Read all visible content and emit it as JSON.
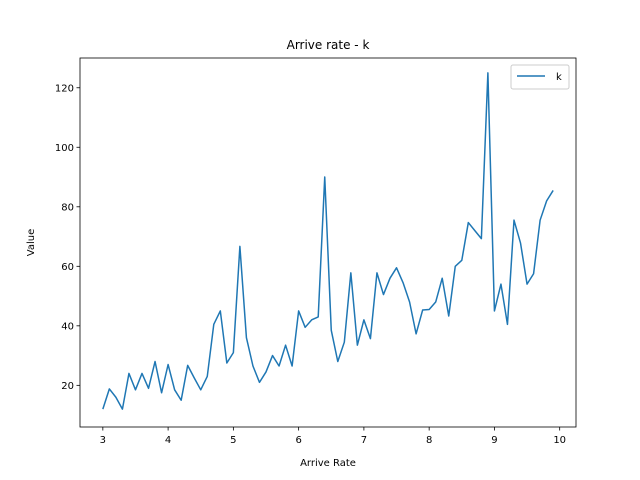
{
  "chart_data": {
    "type": "line",
    "title": "Arrive rate - k",
    "xlabel": "Arrive Rate",
    "ylabel": "Value",
    "xlim": [
      2.65,
      10.25
    ],
    "ylim": [
      6.0,
      130.0
    ],
    "xticks": [
      3,
      4,
      5,
      6,
      7,
      8,
      9,
      10
    ],
    "yticks": [
      20,
      40,
      60,
      80,
      100,
      120
    ],
    "legend_position": "top-right",
    "grid": false,
    "series": [
      {
        "name": "k",
        "color": "#1f77b4",
        "x": [
          3.0,
          3.1,
          3.2,
          3.3,
          3.4,
          3.5,
          3.6,
          3.7,
          3.8,
          3.9,
          4.0,
          4.1,
          4.2,
          4.3,
          4.4,
          4.5,
          4.6,
          4.7,
          4.8,
          4.9,
          5.0,
          5.1,
          5.2,
          5.3,
          5.4,
          5.5,
          5.6,
          5.7,
          5.8,
          5.9,
          6.0,
          6.1,
          6.2,
          6.3,
          6.4,
          6.5,
          6.6,
          6.7,
          6.8,
          6.9,
          7.0,
          7.1,
          7.2,
          7.3,
          7.4,
          7.5,
          7.6,
          7.7,
          7.8,
          7.9,
          8.0,
          8.1,
          8.2,
          8.3,
          8.4,
          8.5,
          8.6,
          8.7,
          8.8,
          8.9,
          9.0,
          9.1,
          9.2,
          9.3,
          9.4,
          9.5,
          9.6,
          9.7,
          9.8,
          9.9
        ],
        "values": [
          12.0,
          18.8,
          16.0,
          12.0,
          24.0,
          18.5,
          24.0,
          19.0,
          28.0,
          17.5,
          27.0,
          18.5,
          15.0,
          26.7,
          22.5,
          18.5,
          23.0,
          40.5,
          45.0,
          27.5,
          31.0,
          66.7,
          36.0,
          26.5,
          21.0,
          24.5,
          30.0,
          26.5,
          33.5,
          26.5,
          45.0,
          39.5,
          42.0,
          43.0,
          90.0,
          38.5,
          28.0,
          34.5,
          57.8,
          33.5,
          42.0,
          35.7,
          57.8,
          50.5,
          56.0,
          59.5,
          54.5,
          48.0,
          37.3,
          45.3,
          45.5,
          48.0,
          56.0,
          43.3,
          60.0,
          62.0,
          74.7,
          72.0,
          69.3,
          125.0,
          45.0,
          54.0,
          40.5,
          75.5,
          67.8,
          54.0,
          57.5,
          75.5,
          82.0,
          85.5
        ]
      }
    ]
  }
}
